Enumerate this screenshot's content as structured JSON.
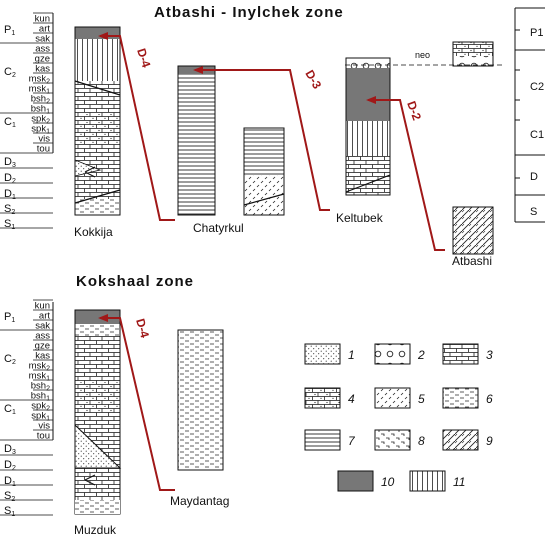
{
  "top_title": "Atbashi - Inylchek zone",
  "bottom_title": "Kokshaal zone",
  "strat_units": [
    "kun",
    "art",
    "sak",
    "ass",
    "gze",
    "kas",
    "msk2",
    "msk1",
    "bsh2",
    "bsh1",
    "spk2",
    "spk1",
    "vis",
    "tou"
  ],
  "left_ages": [
    "P1",
    "C2",
    "C1",
    "D3",
    "D2",
    "D1",
    "S2",
    "S1"
  ],
  "right_ages": [
    "P1",
    "C2",
    "C1",
    "D",
    "S"
  ],
  "sections": {
    "kokkija": "Kokkija",
    "chatyrkul": "Chatyrkul",
    "keltubek": "Keltubek",
    "atbashi": "Atbashi",
    "muzduk": "Muzduk",
    "maydantag": "Maydantag"
  },
  "faults": [
    "D-4",
    "D-3",
    "D-2",
    "D-4"
  ],
  "neo_label": "neo",
  "legend": [
    "1",
    "2",
    "3",
    "4",
    "5",
    "6",
    "7",
    "8",
    "9",
    "10",
    "11"
  ],
  "colors": {
    "fault": "#a01818",
    "dark_fill": "#777777"
  }
}
